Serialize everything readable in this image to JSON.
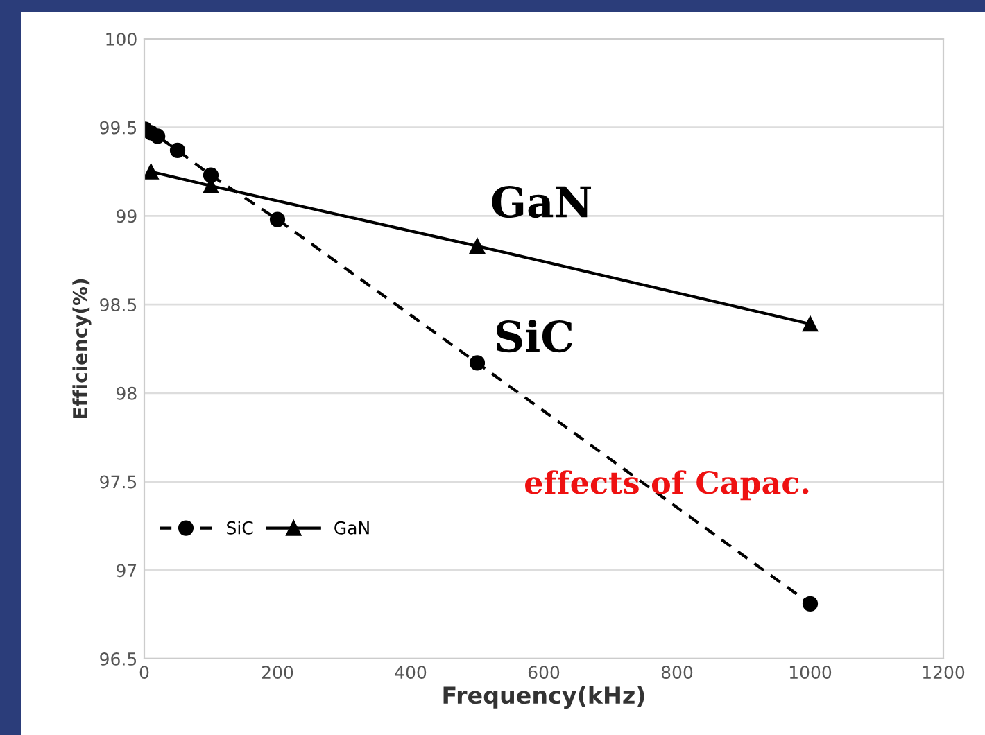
{
  "chart_data": {
    "type": "line",
    "xlabel": "Frequency(kHz)",
    "ylabel": "Efficiency(%)",
    "xlim": [
      0,
      1200
    ],
    "xticks": [
      0,
      200,
      400,
      600,
      800,
      1000,
      1200
    ],
    "ylim": [
      96.5,
      100
    ],
    "yticks": [
      96.5,
      97,
      97.5,
      98,
      98.5,
      99,
      99.5,
      100
    ],
    "grid": "y",
    "legend": "bottom left",
    "series": [
      {
        "name": "SiC",
        "color": "#000000",
        "marker": "circle",
        "line_style": "dashed",
        "x": [
          1,
          10,
          20,
          50,
          100,
          200,
          500,
          1000
        ],
        "values": [
          99.49,
          99.47,
          99.45,
          99.37,
          99.23,
          98.98,
          98.17,
          96.81
        ]
      },
      {
        "name": "GaN",
        "color": "#000000",
        "marker": "triangle",
        "line_style": "solid",
        "x": [
          10,
          100,
          500,
          1000
        ],
        "values": [
          99.25,
          99.17,
          98.83,
          98.39
        ]
      }
    ],
    "annotations": [
      "GaN",
      "SiC",
      "effects of Capac."
    ]
  }
}
